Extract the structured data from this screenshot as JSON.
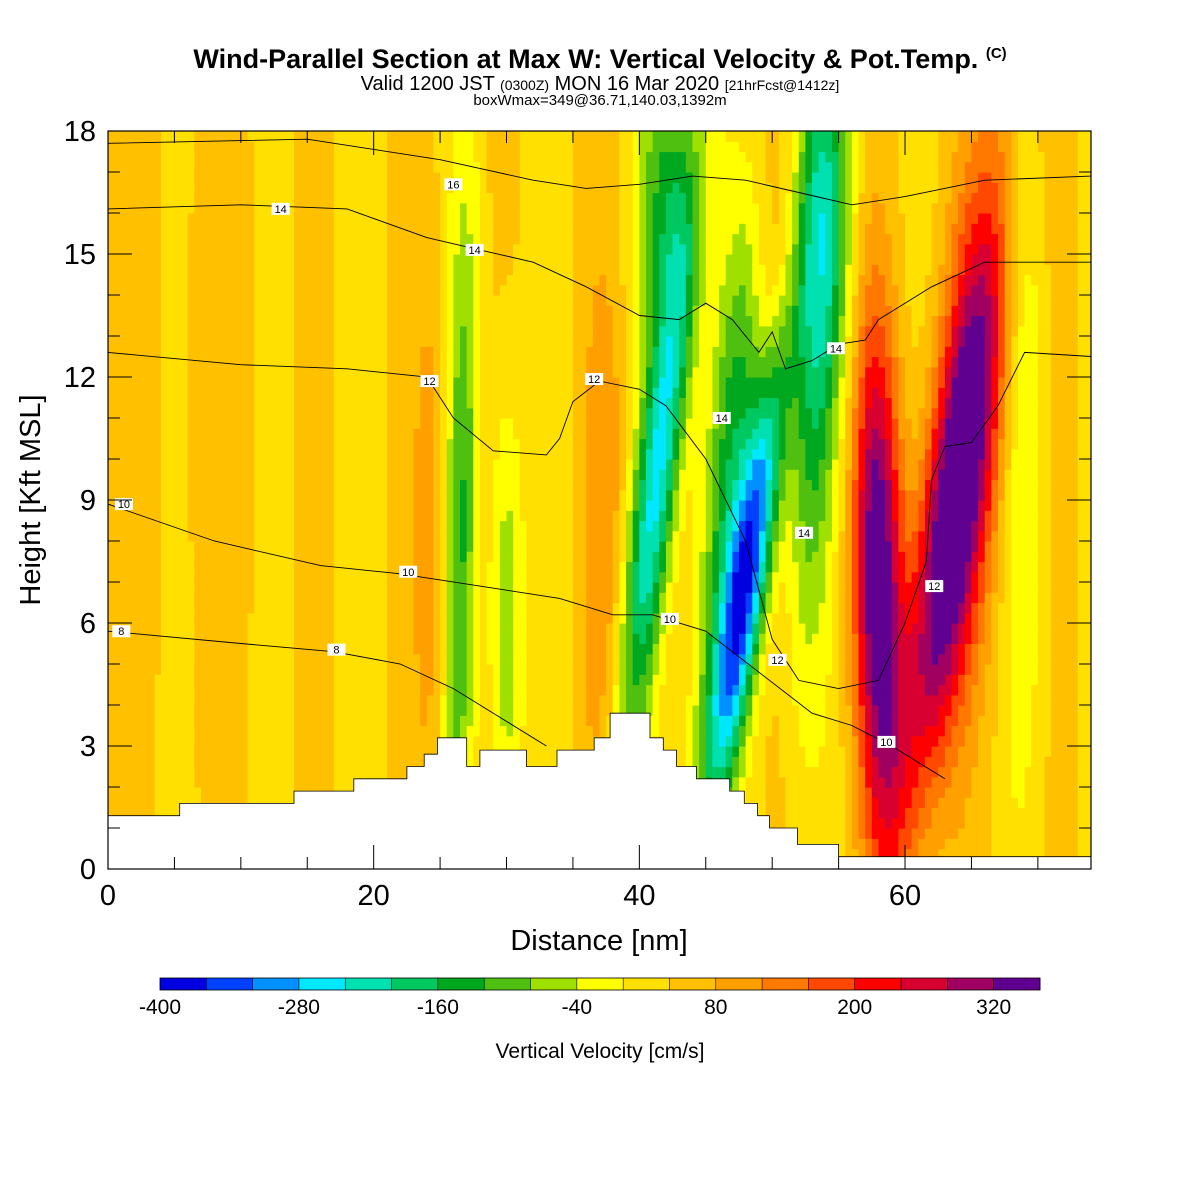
{
  "title": {
    "main": "Wind-Parallel Section at Max W: Vertical Velocity & Pot.Temp.",
    "copyright": "(C)",
    "valid_prefix": "Valid 1200 JST",
    "valid_utc": "(0300Z)",
    "valid_date": "MON 16 Mar 2020",
    "fcst": "[21hrFcst@1412z]",
    "boxline": "boxWmax=349@36.71,140.03,1392m"
  },
  "chart_data": {
    "type": "heatmap",
    "xlabel": "Distance [nm]",
    "ylabel": "Height [Kft MSL]",
    "xlim": [
      0,
      74
    ],
    "ylim": [
      0,
      18
    ],
    "xticks": [
      0,
      20,
      40,
      60
    ],
    "yticks": [
      0,
      3,
      6,
      9,
      12,
      15,
      18
    ],
    "colorbar": {
      "label": "Vertical Velocity [cm/s]",
      "tick_labels": [
        "-400",
        "-280",
        "-160",
        "-40",
        "80",
        "200",
        "320"
      ],
      "tick_values": [
        -400,
        -280,
        -160,
        -40,
        80,
        200,
        320
      ],
      "bins": [
        -400,
        -360,
        -320,
        -280,
        -240,
        -200,
        -160,
        -120,
        -80,
        -40,
        0,
        40,
        80,
        120,
        160,
        200,
        240,
        280,
        320,
        360
      ],
      "colors": [
        "#0000e0",
        "#0040ff",
        "#0090ff",
        "#00e8ff",
        "#00e0b0",
        "#00c860",
        "#00a820",
        "#50c010",
        "#a0e000",
        "#ffff00",
        "#ffe000",
        "#ffc000",
        "#ffa000",
        "#ff7800",
        "#ff4800",
        "#ff0000",
        "#d80030",
        "#a00060",
        "#600090"
      ]
    },
    "terrain": [
      [
        0,
        1.3
      ],
      [
        5.4,
        1.3
      ],
      [
        5.4,
        1.6
      ],
      [
        14,
        1.6
      ],
      [
        14,
        1.9
      ],
      [
        18.5,
        1.9
      ],
      [
        18.5,
        2.2
      ],
      [
        22.5,
        2.2
      ],
      [
        22.5,
        2.5
      ],
      [
        23.8,
        2.5
      ],
      [
        23.8,
        2.8
      ],
      [
        24.8,
        2.8
      ],
      [
        24.8,
        3.2
      ],
      [
        27,
        3.2
      ],
      [
        27,
        2.5
      ],
      [
        28,
        2.5
      ],
      [
        28,
        2.9
      ],
      [
        31.5,
        2.9
      ],
      [
        31.5,
        2.5
      ],
      [
        33.8,
        2.5
      ],
      [
        33.8,
        2.9
      ],
      [
        36.6,
        2.9
      ],
      [
        36.6,
        3.2
      ],
      [
        37.8,
        3.2
      ],
      [
        37.8,
        3.8
      ],
      [
        40.8,
        3.8
      ],
      [
        40.8,
        3.2
      ],
      [
        41.8,
        3.2
      ],
      [
        41.8,
        2.9
      ],
      [
        42.8,
        2.9
      ],
      [
        42.8,
        2.5
      ],
      [
        44.3,
        2.5
      ],
      [
        44.3,
        2.2
      ],
      [
        46.8,
        2.2
      ],
      [
        46.8,
        1.9
      ],
      [
        47.9,
        1.9
      ],
      [
        47.9,
        1.6
      ],
      [
        48.9,
        1.6
      ],
      [
        48.9,
        1.3
      ],
      [
        49.8,
        1.3
      ],
      [
        49.8,
        1.0
      ],
      [
        51.9,
        1.0
      ],
      [
        51.9,
        0.6
      ],
      [
        55,
        0.6
      ],
      [
        55,
        0.3
      ],
      [
        74,
        0.3
      ],
      [
        74,
        0
      ],
      [
        0,
        0
      ]
    ],
    "theta_contours": [
      {
        "label": "8",
        "pts": [
          [
            0,
            5.8
          ],
          [
            10,
            5.5
          ],
          [
            17,
            5.3
          ],
          [
            22,
            5.0
          ],
          [
            26,
            4.4
          ],
          [
            30,
            3.6
          ],
          [
            33,
            3.0
          ]
        ],
        "label_at": [
          1,
          5.8
        ]
      },
      {
        "label": "8",
        "pts": [
          [
            17,
            5.3
          ],
          [
            17.2,
            5.3
          ]
        ],
        "label_at": [
          17.2,
          5.35
        ]
      },
      {
        "label": "10",
        "pts": [
          [
            0,
            8.9
          ],
          [
            8,
            8.0
          ],
          [
            16,
            7.4
          ],
          [
            22,
            7.2
          ],
          [
            28,
            6.9
          ],
          [
            34,
            6.6
          ],
          [
            38,
            6.2
          ],
          [
            41,
            6.2
          ],
          [
            45,
            5.8
          ],
          [
            49,
            4.8
          ],
          [
            53,
            3.8
          ],
          [
            56,
            3.5
          ],
          [
            59,
            3.0
          ],
          [
            63,
            2.2
          ]
        ],
        "label_at": [
          1.2,
          8.9
        ]
      },
      {
        "label": "10",
        "pts": [
          [
            22.6,
            7.2
          ],
          [
            22.8,
            7.2
          ]
        ],
        "label_at": [
          22.6,
          7.25
        ]
      },
      {
        "label": "10",
        "pts": [
          [
            42.3,
            6.1
          ],
          [
            42.5,
            6.1
          ]
        ],
        "label_at": [
          42.3,
          6.1
        ]
      },
      {
        "label": "10",
        "pts": [
          [
            58.5,
            3.1
          ],
          [
            58.7,
            3.1
          ]
        ],
        "label_at": [
          58.6,
          3.1
        ]
      },
      {
        "label": "12",
        "pts": [
          [
            0,
            12.6
          ],
          [
            10,
            12.3
          ],
          [
            18,
            12.2
          ],
          [
            24,
            12.0
          ],
          [
            26,
            11.0
          ],
          [
            29,
            10.2
          ],
          [
            33,
            10.1
          ],
          [
            34,
            10.5
          ],
          [
            35,
            11.4
          ],
          [
            37,
            11.9
          ],
          [
            40,
            11.7
          ],
          [
            42,
            11.3
          ],
          [
            45,
            10.0
          ],
          [
            48,
            8.0
          ],
          [
            50,
            5.6
          ],
          [
            52,
            4.6
          ],
          [
            55,
            4.4
          ],
          [
            58,
            4.6
          ],
          [
            60,
            6.0
          ],
          [
            61.6,
            7.5
          ],
          [
            62,
            9.5
          ],
          [
            63,
            10.3
          ],
          [
            65,
            10.4
          ],
          [
            67,
            11.3
          ],
          [
            69,
            12.6
          ],
          [
            74,
            12.5
          ]
        ],
        "label_at": [
          24.2,
          11.9
        ]
      },
      {
        "label": "12",
        "pts": [
          [
            36.6,
            11.95
          ],
          [
            36.8,
            11.95
          ]
        ],
        "label_at": [
          36.6,
          11.95
        ]
      },
      {
        "label": "12",
        "pts": [
          [
            50.4,
            5.1
          ],
          [
            50.6,
            5.1
          ]
        ],
        "label_at": [
          50.4,
          5.1
        ]
      },
      {
        "label": "12",
        "pts": [
          [
            62.1,
            6.9
          ],
          [
            62.3,
            6.9
          ]
        ],
        "label_at": [
          62.2,
          6.9
        ]
      },
      {
        "label": "14",
        "pts": [
          [
            0,
            16.1
          ],
          [
            10,
            16.2
          ],
          [
            18,
            16.1
          ],
          [
            24,
            15.4
          ],
          [
            28,
            15.1
          ],
          [
            32,
            14.8
          ],
          [
            36,
            14.2
          ],
          [
            40,
            13.5
          ],
          [
            43,
            13.4
          ],
          [
            45,
            13.8
          ],
          [
            47,
            13.4
          ],
          [
            49,
            12.6
          ],
          [
            50,
            13.1
          ],
          [
            51,
            12.2
          ],
          [
            53,
            12.4
          ],
          [
            55,
            12.8
          ],
          [
            57,
            12.9
          ],
          [
            58,
            13.4
          ],
          [
            60,
            13.8
          ],
          [
            62,
            14.2
          ],
          [
            66,
            14.8
          ],
          [
            70,
            14.8
          ],
          [
            74,
            14.8
          ]
        ],
        "label_at": [
          13,
          16.1
        ]
      },
      {
        "label": "14",
        "pts": [
          [
            27.6,
            15.1
          ],
          [
            27.8,
            15.1
          ]
        ],
        "label_at": [
          27.6,
          15.1
        ]
      },
      {
        "label": "14",
        "pts": [
          [
            45.8,
            11.0
          ],
          [
            46,
            11.0
          ]
        ],
        "label_at": [
          46.2,
          11.0
        ]
      },
      {
        "label": "14",
        "pts": [
          [
            52.3,
            8.2
          ],
          [
            52.5,
            8.2
          ]
        ],
        "label_at": [
          52.4,
          8.2
        ]
      },
      {
        "label": "14",
        "pts": [
          [
            54.8,
            12.7
          ],
          [
            55,
            12.7
          ]
        ],
        "label_at": [
          54.8,
          12.7
        ]
      },
      {
        "label": "16",
        "pts": [
          [
            0,
            17.7
          ],
          [
            15,
            17.8
          ],
          [
            25,
            17.3
          ],
          [
            32,
            16.8
          ],
          [
            36,
            16.6
          ],
          [
            40,
            16.7
          ],
          [
            44,
            16.9
          ],
          [
            48,
            16.8
          ],
          [
            52,
            16.5
          ],
          [
            56,
            16.2
          ],
          [
            60,
            16.4
          ],
          [
            66,
            16.8
          ],
          [
            74,
            16.9
          ]
        ],
        "label_at": [
          26,
          16.7
        ]
      }
    ]
  }
}
